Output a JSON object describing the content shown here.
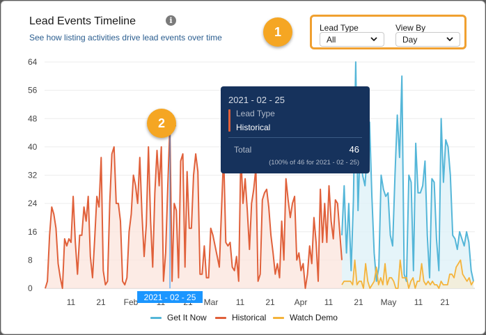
{
  "card": {
    "title": "Lead Events Timeline",
    "subtitle": "See how listing activities drive lead events over time",
    "info_icon": "info-icon"
  },
  "filters": {
    "lead_type": {
      "label": "Lead Type",
      "value": "All"
    },
    "view_by": {
      "label": "View By",
      "value": "Day"
    }
  },
  "callouts": {
    "one": "1",
    "two": "2"
  },
  "tooltip": {
    "date": "2021 - 02 - 25",
    "series_label": "Lead Type",
    "series_value": "Historical",
    "total_label": "Total",
    "total_value": "46",
    "note": "(100% of 46 for 2021 - 02 - 25)"
  },
  "colors": {
    "get_it_now": "#54b6d8",
    "historical": "#e0603a",
    "watch_demo": "#f4b33b",
    "callout": "#f5a623",
    "tooltip_bg": "#16325c",
    "crosshair": "#1b96ff"
  },
  "chart_data": {
    "type": "line",
    "ylim": [
      0,
      64
    ],
    "y_ticks": [
      "0",
      "8",
      "16",
      "24",
      "32",
      "40",
      "48",
      "56",
      "64"
    ],
    "x_tick_labels": [
      "11",
      "21",
      "Feb",
      "11",
      "21",
      "Mar",
      "11",
      "21",
      "Apr",
      "11",
      "21",
      "May",
      "11",
      "21"
    ],
    "crosshair_label": "2021 - 02 - 25",
    "series": [
      {
        "name": "Historical",
        "color": "#e0603a",
        "values": [
          0,
          2,
          15,
          23,
          21,
          17,
          7,
          3,
          0,
          14,
          12,
          14,
          13,
          26,
          13,
          4,
          15,
          15,
          23,
          19,
          26,
          9,
          3,
          14,
          26,
          23,
          37,
          5,
          1,
          2,
          24,
          38,
          40,
          24,
          24,
          19,
          2,
          1,
          3,
          16,
          21,
          32,
          29,
          24,
          37,
          21,
          9,
          18,
          40,
          19,
          6,
          27,
          39,
          29,
          40,
          2,
          10,
          29,
          46,
          2,
          24,
          22,
          3,
          36,
          38,
          6,
          33,
          17,
          17,
          32,
          38,
          33,
          4,
          4,
          12,
          3,
          3,
          17,
          15,
          12,
          9,
          6,
          22,
          38,
          13,
          12,
          13,
          6,
          5,
          9,
          2,
          38,
          24,
          31,
          22,
          11,
          24,
          28,
          34,
          2,
          4,
          25,
          27,
          28,
          23,
          15,
          10,
          4,
          7,
          3,
          19,
          8,
          31,
          25,
          20,
          24,
          26,
          8,
          10,
          5,
          7,
          0,
          4,
          12,
          7,
          20,
          13,
          2,
          28,
          13,
          24,
          13,
          29,
          19,
          14,
          25,
          24,
          16,
          8
        ]
      },
      {
        "name": "Get It Now",
        "color": "#54b6d8",
        "values": [
          15,
          29,
          10,
          24,
          5,
          25,
          64,
          22,
          42,
          32,
          29,
          39,
          47,
          26,
          10,
          2,
          6,
          32,
          28,
          26,
          27,
          15,
          12,
          32,
          49,
          37,
          60,
          4,
          2,
          32,
          30,
          5,
          41,
          27,
          27,
          29,
          36,
          15,
          3,
          31,
          30,
          14,
          5,
          48,
          30,
          42,
          40,
          32,
          15,
          14,
          11,
          16,
          14,
          12,
          16,
          13,
          5,
          2
        ]
      },
      {
        "name": "Watch Demo",
        "color": "#f4b33b",
        "values": [
          1,
          2,
          2,
          2,
          2,
          1,
          8,
          1,
          2,
          2,
          0,
          7,
          2,
          0,
          1,
          2,
          6,
          1,
          3,
          1,
          7,
          1,
          3,
          3,
          2,
          0,
          0,
          8,
          3,
          3,
          3,
          0,
          2,
          3,
          0,
          2,
          2,
          7,
          2,
          1,
          2,
          1,
          2,
          1,
          1,
          0,
          2,
          1,
          1,
          1,
          4,
          4,
          3,
          6,
          7,
          8,
          4,
          3,
          2,
          3,
          1,
          2
        ]
      }
    ]
  },
  "legend": [
    {
      "label": "Get It Now",
      "color": "#54b6d8"
    },
    {
      "label": "Historical",
      "color": "#e0603a"
    },
    {
      "label": "Watch Demo",
      "color": "#f4b33b"
    }
  ]
}
